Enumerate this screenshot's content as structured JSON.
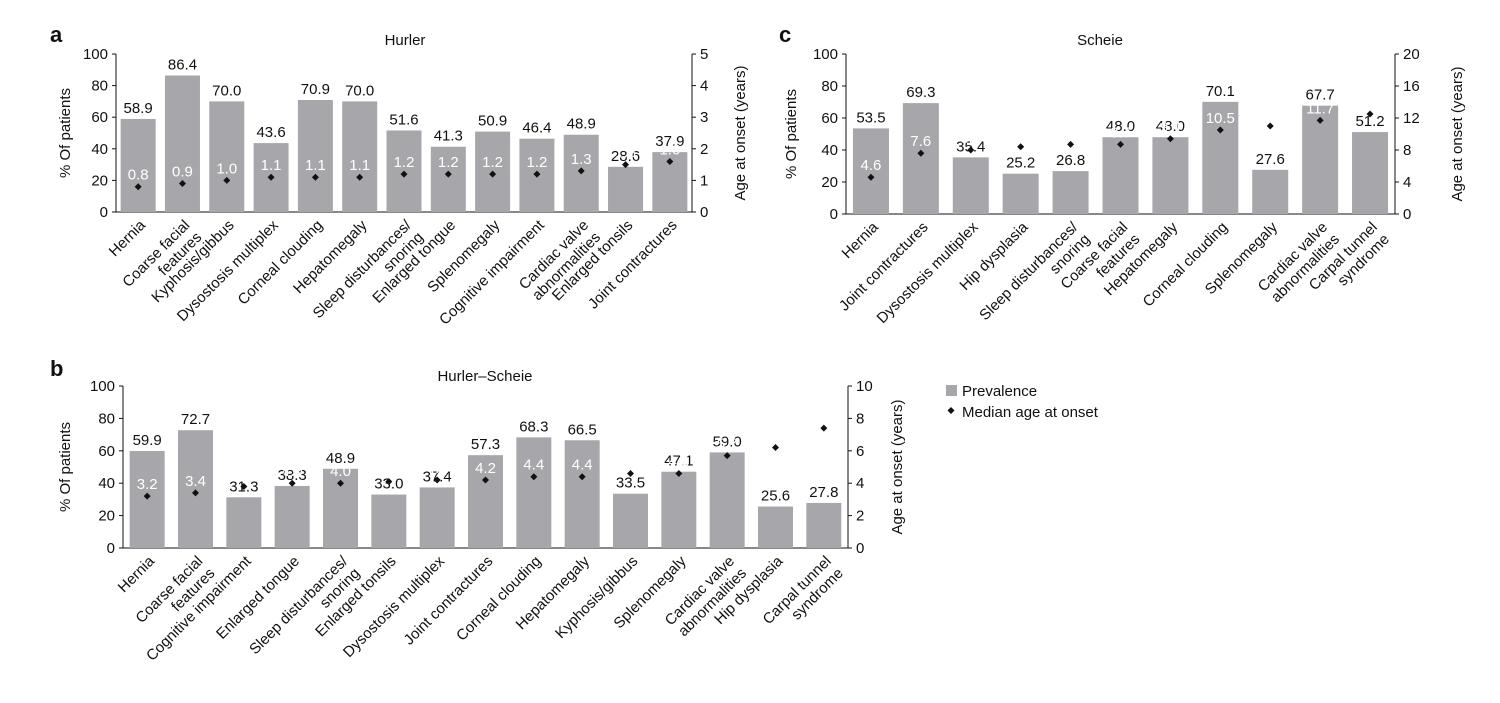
{
  "legend": {
    "prevalence_label": "Prevalence",
    "age_label": "Median age at onset",
    "bar_color": "#a7a7ab",
    "marker_color": "#111111"
  },
  "chart_data": [
    {
      "id": "a",
      "type": "bar",
      "panel_letter": "a",
      "title": "Hurler",
      "ylabel": "% Of patients",
      "y2label": "Age at onset (years)",
      "ylim": [
        0,
        100
      ],
      "yticks": [
        0,
        20,
        40,
        60,
        80,
        100
      ],
      "y2lim": [
        0,
        5
      ],
      "y2ticks": [
        0,
        1,
        2,
        3,
        4,
        5
      ],
      "series": [
        {
          "name": "Prevalence",
          "axis": "left",
          "values": [
            58.9,
            86.4,
            70.0,
            43.6,
            70.9,
            70.0,
            51.6,
            41.3,
            50.9,
            46.4,
            48.9,
            28.6,
            37.9
          ],
          "labels": [
            "58.9",
            "86.4",
            "70.0",
            "43.6",
            "70.9",
            "70.0",
            "51.6",
            "41.3",
            "50.9",
            "46.4",
            "48.9",
            "28.6",
            "37.9"
          ]
        },
        {
          "name": "Median age at onset",
          "axis": "right",
          "values": [
            0.8,
            0.9,
            1.0,
            1.1,
            1.1,
            1.1,
            1.2,
            1.2,
            1.2,
            1.2,
            1.3,
            1.5,
            1.6
          ],
          "labels": [
            "0.8",
            "0.9",
            "1.0",
            "1.1",
            "1.1",
            "1.1",
            "1.2",
            "1.2",
            "1.2",
            "1.2",
            "1.3",
            "1.5",
            "1.6"
          ]
        }
      ],
      "categories": [
        [
          "Hernia"
        ],
        [
          "Coarse facial",
          "features"
        ],
        [
          "Kyphosis/gibbus"
        ],
        [
          "Dysostosis multiplex"
        ],
        [
          "Corneal clouding"
        ],
        [
          "Hepatomegaly"
        ],
        [
          "Sleep disturbances/",
          "snoring"
        ],
        [
          "Enlarged tongue"
        ],
        [
          "Splenomegaly"
        ],
        [
          "Cognitive impairment"
        ],
        [
          "Cardiac valve",
          "abnormalities"
        ],
        [
          "Enlarged tonsils"
        ],
        [
          "Joint contractures"
        ]
      ]
    },
    {
      "id": "b",
      "type": "bar",
      "panel_letter": "b",
      "title": "Hurler–Scheie",
      "ylabel": "% Of patients",
      "y2label": "Age at onset (years)",
      "ylim": [
        0,
        100
      ],
      "yticks": [
        0,
        20,
        40,
        60,
        80,
        100
      ],
      "y2lim": [
        0,
        10
      ],
      "y2ticks": [
        0,
        2,
        4,
        6,
        8,
        10
      ],
      "series": [
        {
          "name": "Prevalence",
          "axis": "left",
          "values": [
            59.9,
            72.7,
            31.3,
            38.3,
            48.9,
            33.0,
            37.4,
            57.3,
            68.3,
            66.5,
            33.5,
            47.1,
            59.0,
            25.6,
            27.8
          ],
          "labels": [
            "59.9",
            "72.7",
            "31.3",
            "38.3",
            "48.9",
            "33.0",
            "37.4",
            "57.3",
            "68.3",
            "66.5",
            "33.5",
            "47.1",
            "59.0",
            "25.6",
            "27.8"
          ]
        },
        {
          "name": "Median age at onset",
          "axis": "right",
          "values": [
            3.2,
            3.4,
            3.8,
            4.0,
            4.0,
            4.1,
            4.2,
            4.2,
            4.4,
            4.4,
            4.6,
            4.6,
            5.7,
            6.2,
            7.4
          ],
          "labels": [
            "3.2",
            "3.4",
            "3.8",
            "4.0",
            "4.0",
            "4.1",
            "4.2",
            "4.2",
            "4.4",
            "4.4",
            "4.6",
            "4.6",
            "5.7",
            "6.2",
            "7.4"
          ]
        }
      ],
      "categories": [
        [
          "Hernia"
        ],
        [
          "Coarse facial",
          "features"
        ],
        [
          "Cognitive impairment"
        ],
        [
          "Enlarged tongue"
        ],
        [
          "Sleep disturbances/",
          "snoring"
        ],
        [
          "Enlarged tonsils"
        ],
        [
          "Dysostosis multiplex"
        ],
        [
          "Joint contractures"
        ],
        [
          "Corneal clouding"
        ],
        [
          "Hepatomegaly"
        ],
        [
          "Kyphosis/gibbus"
        ],
        [
          "Splenomegaly"
        ],
        [
          "Cardiac valve",
          "abnormalities"
        ],
        [
          "Hip dysplasia"
        ],
        [
          "Carpal tunnel",
          "syndrome"
        ]
      ]
    },
    {
      "id": "c",
      "type": "bar",
      "panel_letter": "c",
      "title": "Scheie",
      "ylabel": "% Of patients",
      "y2label": "Age at onset (years)",
      "ylim": [
        0,
        100
      ],
      "yticks": [
        0,
        20,
        40,
        60,
        80,
        100
      ],
      "y2lim": [
        0,
        20
      ],
      "y2ticks": [
        0,
        4,
        8,
        12,
        16,
        20
      ],
      "series": [
        {
          "name": "Prevalence",
          "axis": "left",
          "values": [
            53.5,
            69.3,
            35.4,
            25.2,
            26.8,
            48.0,
            48.0,
            70.1,
            27.6,
            67.7,
            51.2
          ],
          "labels": [
            "53.5",
            "69.3",
            "35.4",
            "25.2",
            "26.8",
            "48.0",
            "48.0",
            "70.1",
            "27.6",
            "67.7",
            "51.2"
          ]
        },
        {
          "name": "Median age at onset",
          "axis": "right",
          "values": [
            4.6,
            7.6,
            8.0,
            8.4,
            8.7,
            8.7,
            9.4,
            10.5,
            11.0,
            11.7,
            12.5
          ],
          "labels": [
            "4.6",
            "7.6",
            "8.0",
            "8.4",
            "8.7",
            "8.7",
            "9.4",
            "10.5",
            "11.0",
            "11.7",
            "12.5"
          ]
        }
      ],
      "categories": [
        [
          "Hernia"
        ],
        [
          "Joint contractures"
        ],
        [
          "Dysostosis multiplex"
        ],
        [
          "Hip dysplasia"
        ],
        [
          "Sleep disturbances/",
          "snoring"
        ],
        [
          "Coarse facial",
          "features"
        ],
        [
          "Hepatomegaly"
        ],
        [
          "Corneal clouding"
        ],
        [
          "Splenomegaly"
        ],
        [
          "Cardiac valve",
          "abnormalities"
        ],
        [
          "Carpal tunnel",
          "syndrome"
        ]
      ]
    }
  ]
}
